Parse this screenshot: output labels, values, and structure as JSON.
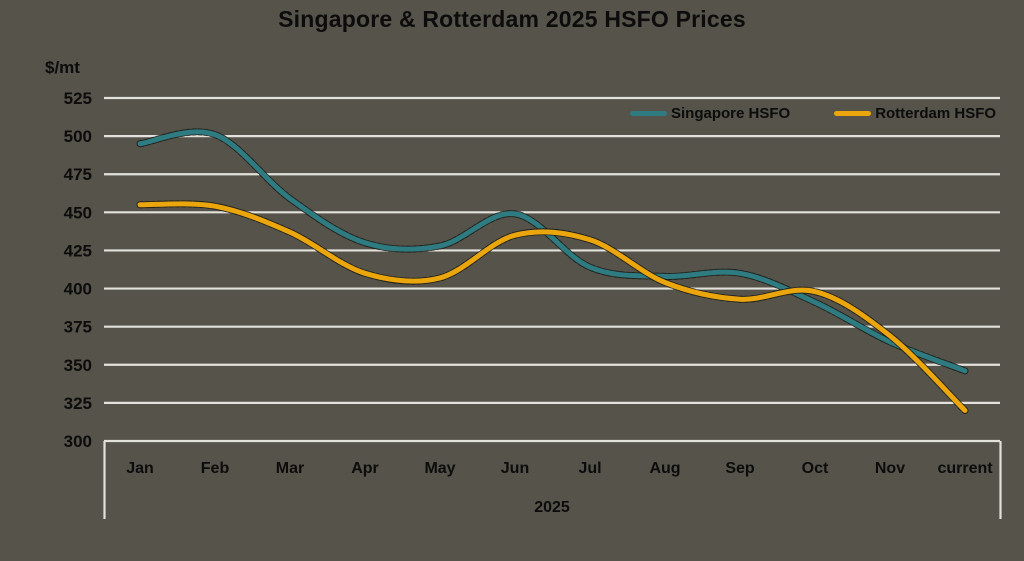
{
  "title": "Singapore & Rotterdam 2025 HSFO Prices",
  "y_axis_unit": "$/mt",
  "x_axis_group_label": "2025",
  "colors": {
    "background": "#55534a",
    "gridline": "#e2e1db",
    "text": "#0c0c0c",
    "singapore_line": "#2e7c82",
    "rotterdam_line": "#eca60d"
  },
  "legend": {
    "items": [
      {
        "label": "Singapore HSFO",
        "color": "#2e7c82"
      },
      {
        "label": "Rotterdam HSFO",
        "color": "#eca60d"
      }
    ]
  },
  "chart_data": {
    "type": "line",
    "title": "Singapore & Rotterdam 2025 HSFO Prices",
    "ylabel": "$/mt",
    "xlabel": "2025",
    "x": [
      "Jan",
      "Feb",
      "Mar",
      "Apr",
      "May",
      "Jun",
      "Jul",
      "Aug",
      "Sep",
      "Oct",
      "Nov",
      "current"
    ],
    "series": [
      {
        "name": "Singapore HSFO",
        "color": "#2e7c82",
        "values": [
          495,
          501,
          459,
          430,
          428,
          449,
          414,
          408,
          410,
          391,
          365,
          346
        ]
      },
      {
        "name": "Rotterdam HSFO",
        "color": "#eca60d",
        "values": [
          455,
          454,
          437,
          410,
          407,
          435,
          432,
          404,
          393,
          398,
          369,
          320
        ]
      }
    ],
    "ylim": [
      300,
      525
    ],
    "ytick_step": 25,
    "grid": true,
    "line_style": "smooth",
    "legend_position": "top-right"
  }
}
